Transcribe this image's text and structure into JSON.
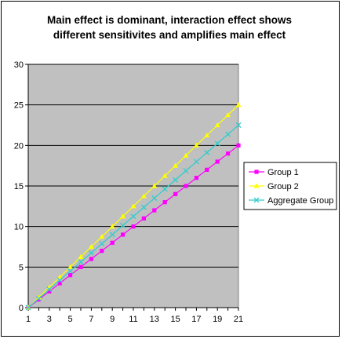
{
  "chart_data": {
    "type": "line",
    "title": "Main effect is dominant, interaction effect shows different sensitivites and amplifies main effect",
    "title_lines": [
      "Main effect is dominant, interaction effect shows",
      "different sensitivites and amplifies main effect"
    ],
    "xlabel": "",
    "ylabel": "",
    "x": [
      1,
      2,
      3,
      4,
      5,
      6,
      7,
      8,
      9,
      10,
      11,
      12,
      13,
      14,
      15,
      16,
      17,
      18,
      19,
      20,
      21
    ],
    "x_tick_labels": [
      "1",
      "3",
      "5",
      "7",
      "9",
      "11",
      "13",
      "15",
      "17",
      "19",
      "21"
    ],
    "ylim": [
      0,
      30
    ],
    "y_ticks": [
      0,
      5,
      10,
      15,
      20,
      25,
      30
    ],
    "y_tick_labels": [
      "0",
      "5",
      "10",
      "15",
      "20",
      "25",
      "30"
    ],
    "grid": "horizontal",
    "legend_position": "right",
    "plot_background": "#c0c0c0",
    "series": [
      {
        "name": "Group 1",
        "color": "#ff00ff",
        "marker": "square",
        "values": [
          0,
          1,
          2,
          3,
          4,
          5,
          6,
          7,
          8,
          9,
          10,
          11,
          12,
          13,
          14,
          15,
          16,
          17,
          18,
          19,
          20
        ]
      },
      {
        "name": "Group 2",
        "color": "#ffff00",
        "marker": "triangle",
        "values": [
          0,
          1.25,
          2.5,
          3.75,
          5,
          6.25,
          7.5,
          8.75,
          10,
          11.25,
          12.5,
          13.75,
          15,
          16.25,
          17.5,
          18.75,
          20,
          21.25,
          22.5,
          23.75,
          25
        ]
      },
      {
        "name": "Aggregate Group",
        "color": "#33cccc",
        "marker": "x",
        "values": [
          0,
          1.125,
          2.25,
          3.375,
          4.5,
          5.625,
          6.75,
          7.875,
          9,
          10.125,
          11.25,
          12.375,
          13.5,
          14.625,
          15.75,
          16.875,
          18,
          19.125,
          20.25,
          21.375,
          22.5
        ]
      }
    ]
  }
}
